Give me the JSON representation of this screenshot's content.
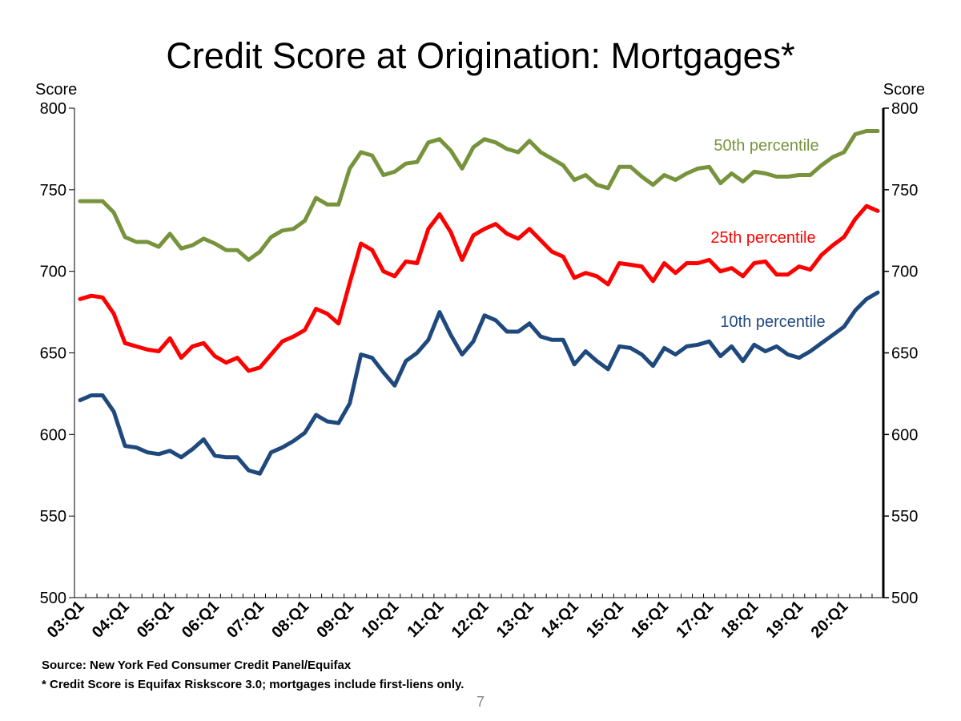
{
  "page": {
    "number": "7"
  },
  "source_note": "Source: New York Fed Consumer Credit Panel/Equifax",
  "footnote": "* Credit Score is Equifax Riskscore 3.0; mortgages include first-liens only.",
  "chart_data": {
    "type": "line",
    "title": "Credit Score at Origination: Mortgages*",
    "ylabel_left": "Score",
    "ylabel_right": "Score",
    "ylim": [
      500,
      800
    ],
    "yticks": [
      500,
      550,
      600,
      650,
      700,
      750,
      800
    ],
    "x_start": "2003Q1",
    "x_labels": [
      "03:Q1",
      "04:Q1",
      "05:Q1",
      "06:Q1",
      "07:Q1",
      "08:Q1",
      "09:Q1",
      "10:Q1",
      "11:Q1",
      "12:Q1",
      "13:Q1",
      "14:Q1",
      "15:Q1",
      "16:Q1",
      "17:Q1",
      "18:Q1",
      "19:Q1",
      "20:Q1"
    ],
    "grid": false,
    "series": [
      {
        "name": "50th percentile",
        "color": "#77933C",
        "values": [
          743,
          743,
          743,
          736,
          721,
          718,
          718,
          715,
          723,
          714,
          716,
          720,
          717,
          713,
          713,
          707,
          712,
          721,
          725,
          726,
          731,
          745,
          741,
          741,
          763,
          773,
          771,
          759,
          761,
          766,
          767,
          779,
          781,
          774,
          763,
          776,
          781,
          779,
          775,
          773,
          780,
          773,
          769,
          765,
          756,
          759,
          753,
          751,
          764,
          764,
          758,
          753,
          759,
          756,
          760,
          763,
          764,
          754,
          760,
          755,
          761,
          760,
          758,
          758,
          759,
          759,
          765,
          770,
          773,
          784,
          786,
          786
        ]
      },
      {
        "name": "25th percentile",
        "color": "#FF0000",
        "values": [
          683,
          685,
          684,
          674,
          656,
          654,
          652,
          651,
          659,
          647,
          654,
          656,
          648,
          644,
          647,
          639,
          641,
          649,
          657,
          660,
          664,
          677,
          674,
          668,
          693,
          717,
          713,
          700,
          697,
          706,
          705,
          726,
          735,
          724,
          707,
          722,
          726,
          729,
          723,
          720,
          726,
          719,
          712,
          709,
          696,
          699,
          697,
          692,
          705,
          704,
          703,
          694,
          705,
          699,
          705,
          705,
          707,
          700,
          702,
          697,
          705,
          706,
          698,
          698,
          703,
          701,
          710,
          716,
          721,
          732,
          740,
          737
        ]
      },
      {
        "name": "10th percentile",
        "color": "#1F497D",
        "values": [
          621,
          624,
          624,
          614,
          593,
          592,
          589,
          588,
          590,
          586,
          591,
          597,
          587,
          586,
          586,
          578,
          576,
          589,
          592,
          596,
          601,
          612,
          608,
          607,
          619,
          649,
          647,
          638,
          630,
          645,
          650,
          658,
          675,
          661,
          649,
          657,
          673,
          670,
          663,
          663,
          668,
          660,
          658,
          658,
          643,
          651,
          645,
          640,
          654,
          653,
          649,
          642,
          653,
          649,
          654,
          655,
          657,
          648,
          654,
          645,
          655,
          651,
          654,
          649,
          647,
          651,
          656,
          661,
          666,
          676,
          683,
          687
        ]
      }
    ]
  }
}
